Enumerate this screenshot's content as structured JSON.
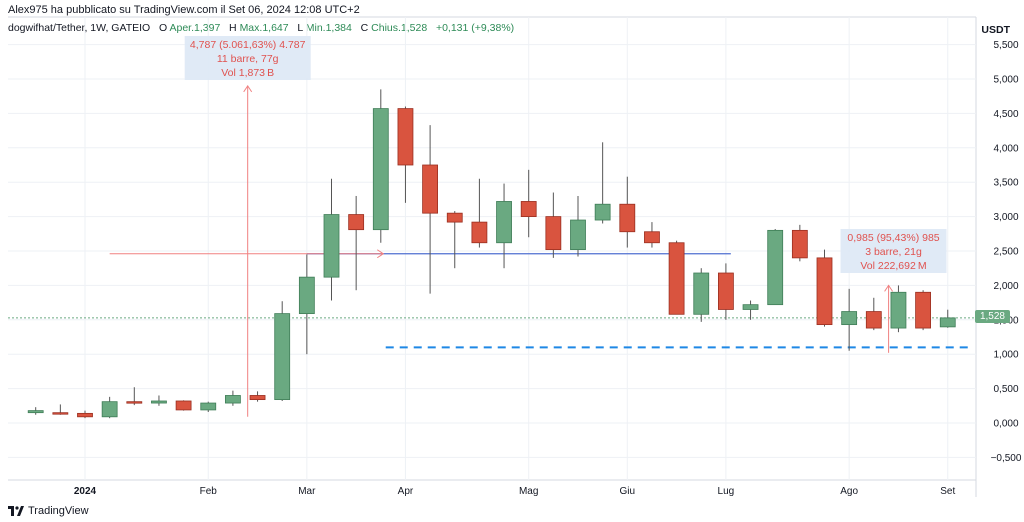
{
  "header": {
    "published": "Alex975 ha pubblicato su TradingView.com il Set 06, 2024 12:08 UTC+2",
    "symbol": "dogwifhat/Tether, 1W, GATEIO",
    "ohlc_o_label": "O",
    "ohlc_o": "Aper.1,397",
    "ohlc_h_label": "H",
    "ohlc_h": "Max.1,647",
    "ohlc_l_label": "L",
    "ohlc_l": "Min.1,384",
    "ohlc_c_label": "C",
    "ohlc_c": "Chius.1,528",
    "change": "+0,131 (+9,38%)"
  },
  "unit": "USDT",
  "footer": {
    "brand": "TradingView"
  },
  "price_tag": "1,528",
  "colors": {
    "up_body": "#6aa981",
    "down_body": "#d9543f",
    "grid": "#eef1f5",
    "horizontal_line": "#4f6fd1",
    "dashed_line": "#1e88e5",
    "measure": "#f08080",
    "measure_box": "#dde8f5"
  },
  "chart_data": {
    "type": "candlestick",
    "title": "",
    "ylabel": "USDT",
    "ylim": [
      -0.75,
      5.75
    ],
    "y_ticks": [
      "5,500",
      "5,000",
      "4,500",
      "4,000",
      "3,500",
      "3,000",
      "2,500",
      "2,000",
      "1,500",
      "1,000",
      "0,500",
      "0,000",
      "−0,500"
    ],
    "y_tick_values": [
      5.5,
      5.0,
      4.5,
      4.0,
      3.5,
      3.0,
      2.5,
      2.0,
      1.5,
      1.0,
      0.5,
      0.0,
      -0.5
    ],
    "x_ticks": [
      "2024",
      "Feb",
      "Mar",
      "Apr",
      "Mag",
      "Giu",
      "Lug",
      "Ago",
      "Set"
    ],
    "x_tick_weeks": [
      0,
      5,
      9,
      13,
      18,
      22,
      26,
      31,
      35
    ],
    "candles": [
      {
        "w": -2,
        "o": 0.15,
        "h": 0.23,
        "l": 0.12,
        "c": 0.18
      },
      {
        "w": -1,
        "o": 0.15,
        "h": 0.27,
        "l": 0.12,
        "c": 0.14
      },
      {
        "w": 0,
        "o": 0.14,
        "h": 0.18,
        "l": 0.07,
        "c": 0.09
      },
      {
        "w": 1,
        "o": 0.09,
        "h": 0.38,
        "l": 0.07,
        "c": 0.31
      },
      {
        "w": 2,
        "o": 0.31,
        "h": 0.52,
        "l": 0.26,
        "c": 0.29
      },
      {
        "w": 3,
        "o": 0.29,
        "h": 0.4,
        "l": 0.25,
        "c": 0.32
      },
      {
        "w": 4,
        "o": 0.32,
        "h": 0.33,
        "l": 0.18,
        "c": 0.19
      },
      {
        "w": 5,
        "o": 0.19,
        "h": 0.31,
        "l": 0.16,
        "c": 0.29
      },
      {
        "w": 6,
        "o": 0.29,
        "h": 0.47,
        "l": 0.25,
        "c": 0.4
      },
      {
        "w": 7,
        "o": 0.4,
        "h": 0.46,
        "l": 0.31,
        "c": 0.34
      },
      {
        "w": 8,
        "o": 0.34,
        "h": 1.77,
        "l": 0.32,
        "c": 1.59
      },
      {
        "w": 9,
        "o": 1.59,
        "h": 2.45,
        "l": 1.0,
        "c": 2.12
      },
      {
        "w": 10,
        "o": 2.12,
        "h": 3.55,
        "l": 1.78,
        "c": 3.03
      },
      {
        "w": 11,
        "o": 3.03,
        "h": 3.3,
        "l": 1.93,
        "c": 2.81
      },
      {
        "w": 12,
        "o": 2.81,
        "h": 4.85,
        "l": 2.62,
        "c": 4.57
      },
      {
        "w": 13,
        "o": 4.57,
        "h": 4.6,
        "l": 3.2,
        "c": 3.75
      },
      {
        "w": 14,
        "o": 3.75,
        "h": 4.33,
        "l": 1.88,
        "c": 3.05
      },
      {
        "w": 15,
        "o": 3.05,
        "h": 3.08,
        "l": 2.25,
        "c": 2.92
      },
      {
        "w": 16,
        "o": 2.92,
        "h": 3.55,
        "l": 2.55,
        "c": 2.62
      },
      {
        "w": 17,
        "o": 2.62,
        "h": 3.48,
        "l": 2.25,
        "c": 3.22
      },
      {
        "w": 18,
        "o": 3.22,
        "h": 3.68,
        "l": 2.7,
        "c": 3.0
      },
      {
        "w": 19,
        "o": 3.0,
        "h": 3.35,
        "l": 2.4,
        "c": 2.52
      },
      {
        "w": 20,
        "o": 2.52,
        "h": 3.3,
        "l": 2.42,
        "c": 2.95
      },
      {
        "w": 21,
        "o": 2.95,
        "h": 4.08,
        "l": 2.9,
        "c": 3.18
      },
      {
        "w": 22,
        "o": 3.18,
        "h": 3.58,
        "l": 2.55,
        "c": 2.78
      },
      {
        "w": 23,
        "o": 2.78,
        "h": 2.92,
        "l": 2.55,
        "c": 2.62
      },
      {
        "w": 24,
        "o": 2.62,
        "h": 2.65,
        "l": 1.58,
        "c": 1.58
      },
      {
        "w": 25,
        "o": 1.58,
        "h": 2.25,
        "l": 1.47,
        "c": 2.18
      },
      {
        "w": 26,
        "o": 2.18,
        "h": 2.32,
        "l": 1.5,
        "c": 1.65
      },
      {
        "w": 27,
        "o": 1.65,
        "h": 1.78,
        "l": 1.5,
        "c": 1.72
      },
      {
        "w": 28,
        "o": 1.72,
        "h": 2.82,
        "l": 1.72,
        "c": 2.8
      },
      {
        "w": 29,
        "o": 2.8,
        "h": 2.88,
        "l": 2.35,
        "c": 2.4
      },
      {
        "w": 30,
        "o": 2.4,
        "h": 2.52,
        "l": 1.4,
        "c": 1.43
      },
      {
        "w": 31,
        "o": 1.43,
        "h": 1.95,
        "l": 1.05,
        "c": 1.62
      },
      {
        "w": 32,
        "o": 1.62,
        "h": 1.82,
        "l": 1.35,
        "c": 1.38
      },
      {
        "w": 33,
        "o": 1.38,
        "h": 2.0,
        "l": 1.32,
        "c": 1.9
      },
      {
        "w": 34,
        "o": 1.9,
        "h": 1.93,
        "l": 1.35,
        "c": 1.38
      },
      {
        "w": 35,
        "o": 1.397,
        "h": 1.647,
        "l": 1.384,
        "c": 1.528
      }
    ],
    "annotations": [
      {
        "lines": [
          "4,787 (5.061,63%) 4.787",
          "11 barre, 77g",
          "Vol 1,873 B"
        ]
      },
      {
        "lines": [
          "0,985 (95,43%) 985",
          "3 barre, 21g",
          "Vol 222,692 M"
        ]
      }
    ],
    "horizontal_line_value": 2.46,
    "dashed_line_value": 1.1
  }
}
